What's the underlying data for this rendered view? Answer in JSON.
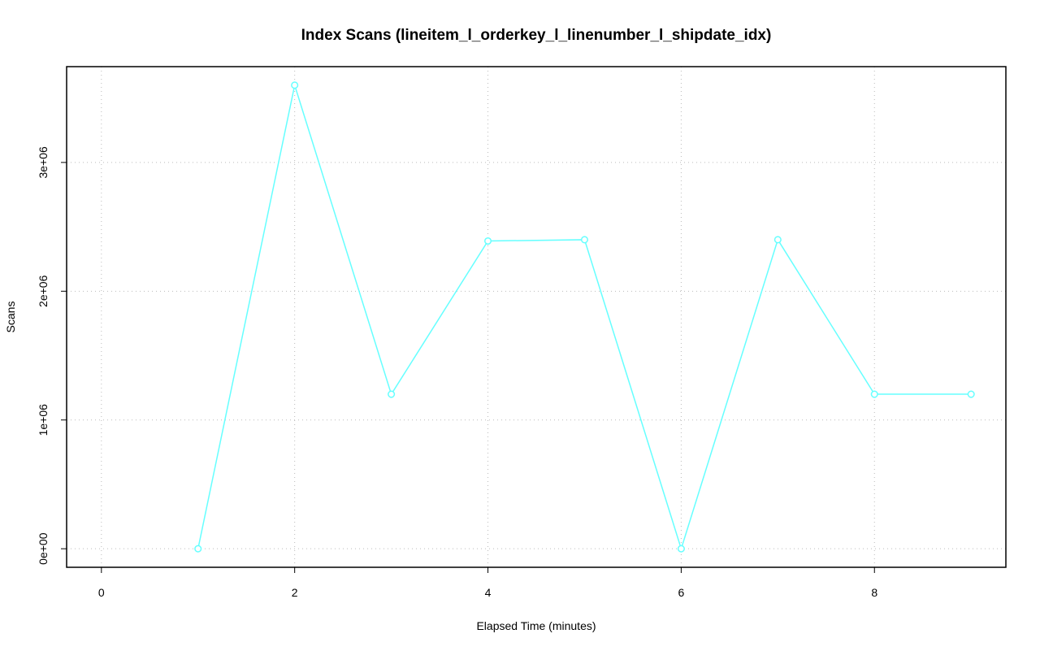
{
  "chart_data": {
    "type": "line",
    "title": "Index Scans (lineitem_l_orderkey_l_linenumber_l_shipdate_idx)",
    "x_label": "Elapsed Time (minutes)",
    "y_label": "Scans",
    "x": [
      1,
      2,
      3,
      4,
      5,
      6,
      7,
      8,
      9
    ],
    "series": [
      {
        "name": "Scans",
        "color": "#66ffff",
        "values": [
          0,
          3600000,
          1200000,
          2390000,
          2400000,
          0,
          2400000,
          1200000,
          1200000
        ]
      }
    ],
    "xlim": [
      -0.36,
      9.36
    ],
    "xticks": [
      0,
      2,
      4,
      6,
      8
    ],
    "ylim": [
      -144000,
      3744000
    ],
    "yticks": [
      {
        "value": 0,
        "label": "0e+00"
      },
      {
        "value": 1000000,
        "label": "1e+06"
      },
      {
        "value": 2000000,
        "label": "2e+06"
      },
      {
        "value": 3000000,
        "label": "3e+06"
      }
    ],
    "grid": true
  }
}
